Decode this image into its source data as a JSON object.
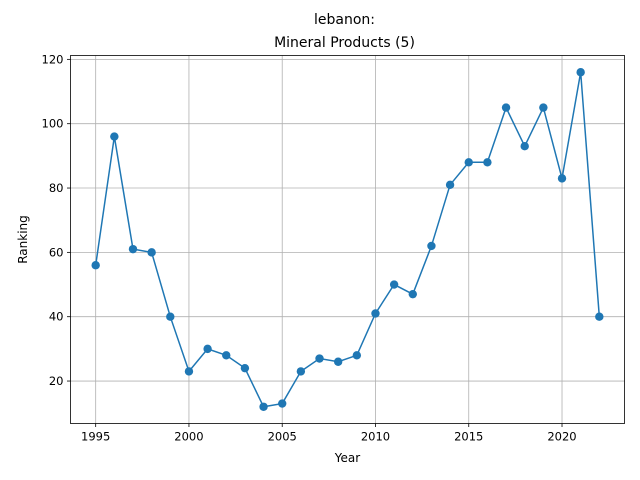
{
  "chart_data": {
    "type": "line",
    "title": "lebanon:",
    "subtitle": "Mineral Products (5)",
    "xlabel": "Year",
    "ylabel": "Ranking",
    "xlim": [
      1993.65,
      2023.35
    ],
    "ylim": [
      6.8,
      121.2
    ],
    "xticks": [
      1995,
      2000,
      2005,
      2010,
      2015,
      2020
    ],
    "yticks": [
      20,
      40,
      60,
      80,
      100,
      120
    ],
    "grid": true,
    "color": "#1f77b4",
    "x": [
      1995,
      1996,
      1997,
      1998,
      1999,
      2000,
      2001,
      2002,
      2003,
      2004,
      2005,
      2006,
      2007,
      2008,
      2009,
      2010,
      2011,
      2012,
      2013,
      2014,
      2015,
      2016,
      2017,
      2018,
      2019,
      2020,
      2021,
      2022
    ],
    "y": [
      56,
      96,
      61,
      60,
      40,
      23,
      30,
      28,
      24,
      12,
      13,
      23,
      27,
      26,
      28,
      41,
      50,
      47,
      62,
      81,
      88,
      88,
      105,
      93,
      105,
      83,
      116,
      40
    ]
  }
}
